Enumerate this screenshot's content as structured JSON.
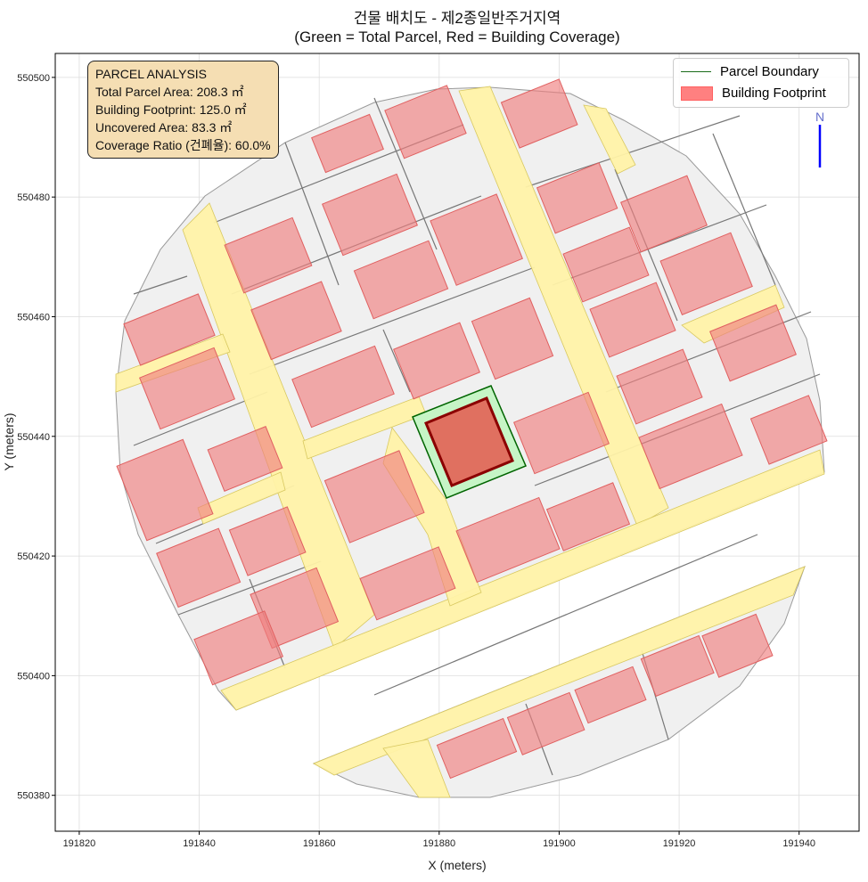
{
  "title": {
    "line1": "건물 배치도 - 제2종일반주거지역",
    "line2": "(Green = Total Parcel, Red = Building Coverage)"
  },
  "axes": {
    "xlabel": "X (meters)",
    "ylabel": "Y (meters)",
    "xlim": [
      191816,
      191950
    ],
    "ylim": [
      550374,
      550504
    ],
    "xticks": [
      "191820",
      "191840",
      "191860",
      "191880",
      "191900",
      "191920",
      "191940"
    ],
    "yticks": [
      "550380",
      "550400",
      "550420",
      "550440",
      "550460",
      "550480",
      "550500"
    ]
  },
  "info_box": {
    "heading": "PARCEL ANALYSIS",
    "total_parcel_area": "Total Parcel Area: 208.3 ㎡",
    "building_footprint": "Building Footprint: 125.0 ㎡",
    "uncovered_area": "Uncovered Area: 83.3 ㎡",
    "coverage_ratio": "Coverage Ratio (건폐율): 60.0%"
  },
  "legend": {
    "items": [
      {
        "label": "Parcel Boundary"
      },
      {
        "label": "Building Footprint"
      }
    ]
  },
  "north_arrow": {
    "label": "N",
    "color": "#0000ff"
  },
  "colors": {
    "parcel_fill": "#c6f5c6",
    "parcel_edge": "#006400",
    "building_fill": "#f08080",
    "building_edge": "#8b0000",
    "road": "#fff2a8",
    "block": "#f0f0f0"
  }
}
